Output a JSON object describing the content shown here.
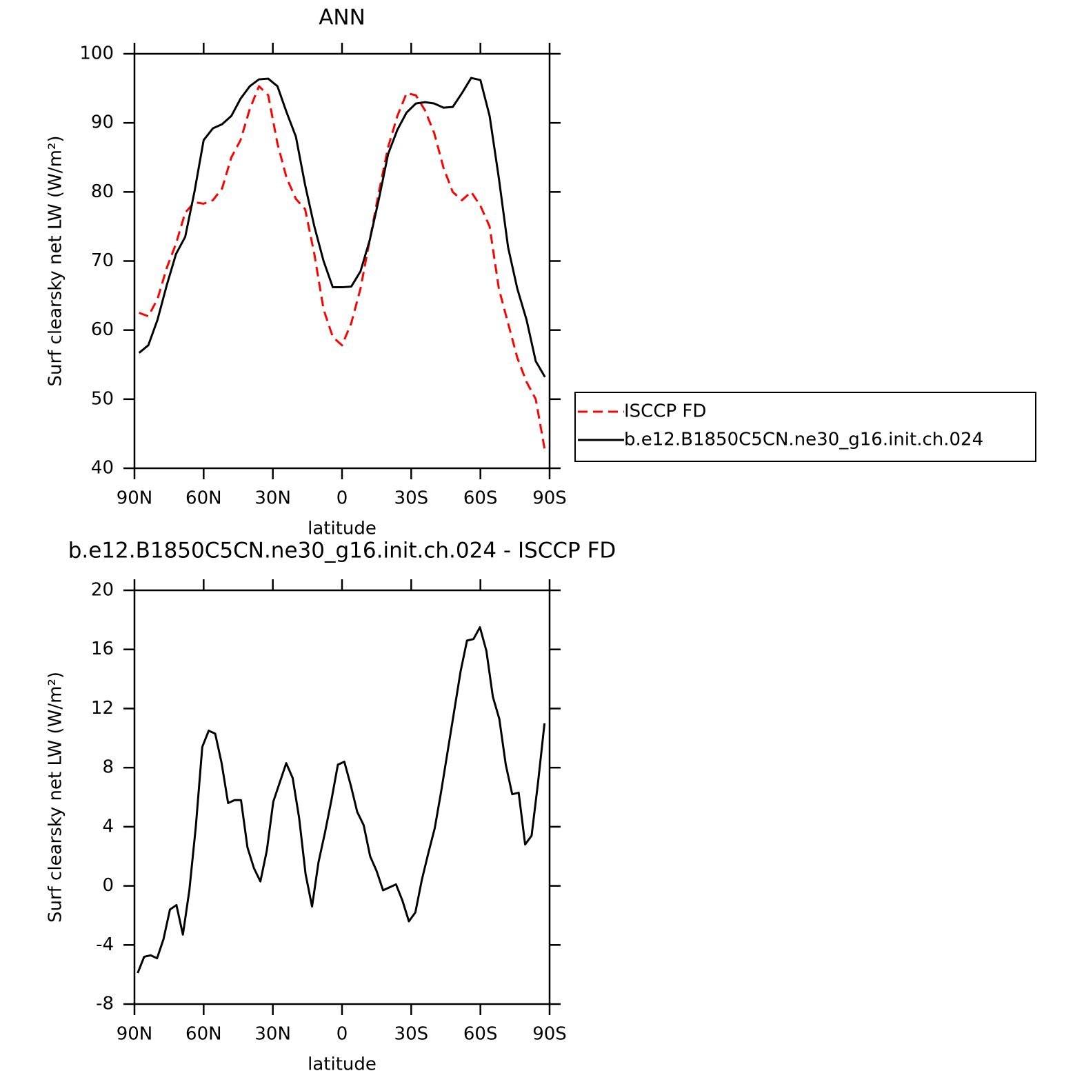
{
  "chart_data": [
    {
      "type": "line",
      "title": "ANN",
      "xlabel": "latitude",
      "ylabel": "Surf clearsky net LW (W/m²)",
      "xlim": [
        90,
        -90
      ],
      "ylim": [
        40,
        100
      ],
      "xticks": [
        {
          "value": 90,
          "label": "90N"
        },
        {
          "value": 60,
          "label": "60N"
        },
        {
          "value": 30,
          "label": "30N"
        },
        0,
        {
          "value": -30,
          "label": "30S"
        },
        {
          "value": -60,
          "label": "60S"
        },
        {
          "value": -90,
          "label": "90S"
        }
      ],
      "yticks": [
        40,
        50,
        60,
        70,
        80,
        90,
        100
      ],
      "legend": "right",
      "x": [
        88,
        84,
        80,
        76,
        72,
        68,
        64,
        60,
        56,
        52,
        48,
        44,
        40,
        36,
        32,
        28,
        24,
        20,
        16,
        12,
        8,
        4,
        0,
        -4,
        -8,
        -12,
        -16,
        -20,
        -24,
        -28,
        -32,
        -36,
        -40,
        -44,
        -48,
        -52,
        -56,
        -60,
        -64,
        -68,
        -72,
        -76,
        -80,
        -84,
        -88
      ],
      "series": [
        {
          "name": "ISCCP FD",
          "color": "#ff0000",
          "dash": "dashed",
          "values": [
            62.5,
            62,
            64.5,
            69,
            72.5,
            77,
            78.5,
            78.3,
            78.8,
            80.5,
            85,
            87.5,
            92,
            95.3,
            94,
            87,
            82,
            79,
            77.5,
            71,
            63,
            59,
            57.8,
            61,
            66,
            73,
            80,
            86.5,
            91,
            94.3,
            94,
            91.8,
            88.5,
            83.5,
            80,
            78.8,
            80,
            78,
            75,
            66,
            61,
            56,
            52.5,
            50,
            42.5
          ]
        },
        {
          "name": "b.e12.B1850C5CN.ne30_g16.init.ch.024",
          "color": "#000000",
          "dash": "solid",
          "values": [
            56.7,
            57.8,
            61.5,
            66.5,
            71,
            73.5,
            80,
            87.5,
            89.2,
            89.8,
            91,
            93.5,
            95.3,
            96.3,
            96.4,
            95.3,
            91.5,
            88,
            81,
            75,
            70,
            66.2,
            66.2,
            66.3,
            68.5,
            73,
            79,
            85.5,
            89,
            91.5,
            92.8,
            93,
            92.8,
            92.2,
            92.3,
            94.3,
            96.5,
            96.2,
            91,
            82,
            72,
            66,
            61.5,
            55.5,
            53.2
          ]
        }
      ]
    },
    {
      "type": "line",
      "title": "b.e12.B1850C5CN.ne30_g16.init.ch.024 - ISCCP FD",
      "xlabel": "latitude",
      "ylabel": "Surf clearsky net LW (W/m²)",
      "xlim": [
        90,
        -90
      ],
      "ylim": [
        -8,
        20
      ],
      "xticks": [
        {
          "value": 90,
          "label": "90N"
        },
        {
          "value": 60,
          "label": "60N"
        },
        {
          "value": 30,
          "label": "30N"
        },
        0,
        {
          "value": -30,
          "label": "30S"
        },
        {
          "value": -60,
          "label": "60S"
        },
        {
          "value": -90,
          "label": "90S"
        }
      ],
      "yticks": [
        -8,
        -4,
        0,
        4,
        8,
        12,
        16,
        20
      ],
      "color": "#000000",
      "x": [
        88.6,
        85.8,
        83,
        80.2,
        77.4,
        74.6,
        71.8,
        69,
        66.2,
        63.4,
        60.6,
        57.8,
        55,
        52.2,
        49.4,
        46.6,
        43.8,
        41,
        38.2,
        35.4,
        32.6,
        29.8,
        27,
        24.2,
        21.4,
        18.6,
        15.8,
        13,
        10.2,
        7.4,
        4.6,
        1.8,
        -1,
        -3.8,
        -6.6,
        -9.4,
        -12.2,
        -15,
        -17.8,
        -20.6,
        -23.4,
        -26.2,
        -29,
        -31.8,
        -34.6,
        -37.4,
        -40.2,
        -43,
        -45.8,
        -48.6,
        -51.4,
        -54.2,
        -57,
        -59.8,
        -62.6,
        -65.4,
        -68.2,
        -71,
        -73.8,
        -76.6,
        -79.4,
        -82.2,
        -85,
        -87.8
      ],
      "values": [
        -5.9,
        -4.8,
        -4.7,
        -4.9,
        -3.6,
        -1.6,
        -1.3,
        -3.3,
        -0.3,
        4,
        9.4,
        10.5,
        10.3,
        8.3,
        5.6,
        5.8,
        5.8,
        2.6,
        1.2,
        0.3,
        2.4,
        5.7,
        7,
        8.3,
        7.3,
        4.6,
        0.8,
        -1.4,
        1.6,
        3.6,
        5.8,
        8.2,
        8.4,
        6.8,
        5,
        4.1,
        2,
        1,
        -0.3,
        -0.1,
        0.1,
        -1,
        -2.4,
        -1.8,
        0.4,
        2.2,
        3.9,
        6.4,
        9.1,
        11.8,
        14.5,
        16.6,
        16.7,
        17.5,
        15.9,
        12.8,
        11.3,
        8.2,
        6.2,
        6.3,
        2.8,
        3.4,
        7,
        11
      ]
    }
  ]
}
